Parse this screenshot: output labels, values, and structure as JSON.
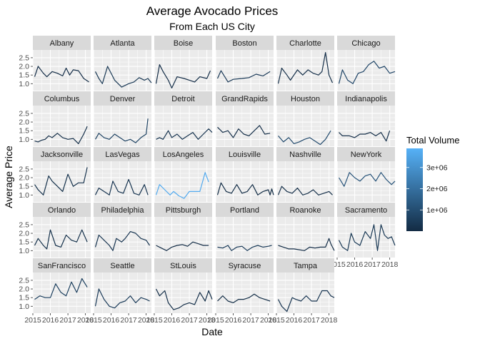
{
  "chart_data": {
    "type": "line",
    "title": "Average Avocado Prices",
    "subtitle": "From Each US City",
    "xlabel": "Date",
    "ylabel": "Average Price",
    "x_ticks": [
      "2015",
      "2016",
      "2017",
      "2018"
    ],
    "y_ticks": [
      "1.0",
      "1.5",
      "2.0",
      "2.5"
    ],
    "xlim": [
      2015.0,
      2018.3
    ],
    "ylim": [
      0.6,
      2.95
    ],
    "grid": true,
    "legend": {
      "title": "Total Volume",
      "placement": "right",
      "ticks": [
        "1e+06",
        "2e+06",
        "3e+06"
      ],
      "tick_values": [
        1000000,
        2000000,
        3000000
      ],
      "range": [
        0,
        3900000
      ],
      "color_low": "#132b43",
      "color_high": "#56b1f7"
    },
    "colors": {
      "panel_bg": "#ebebeb",
      "strip_bg": "#d9d9d9",
      "grid": "#ffffff",
      "line_default": "#1d3a57"
    },
    "series": [
      {
        "name": "Albany",
        "row": 0,
        "col": 0,
        "x": [
          2015.1,
          2015.3,
          2015.6,
          2015.8,
          2016.1,
          2016.4,
          2016.7,
          2016.9,
          2017.1,
          2017.3,
          2017.6,
          2017.9,
          2018.2
        ],
        "y": [
          1.4,
          2.0,
          1.6,
          1.4,
          1.7,
          1.6,
          1.45,
          1.9,
          1.5,
          1.8,
          1.75,
          1.3,
          1.1
        ],
        "volume": 100000
      },
      {
        "name": "Atlanta",
        "row": 0,
        "col": 1,
        "x": [
          2015.1,
          2015.3,
          2015.5,
          2015.8,
          2016.2,
          2016.6,
          2017.0,
          2017.3,
          2017.6,
          2017.9,
          2018.1,
          2018.3
        ],
        "y": [
          1.7,
          1.3,
          1.0,
          2.0,
          1.2,
          0.8,
          1.0,
          1.1,
          1.35,
          1.2,
          1.3,
          1.05
        ],
        "volume": 400000
      },
      {
        "name": "Boise",
        "row": 0,
        "col": 2,
        "x": [
          2015.1,
          2015.3,
          2015.5,
          2015.8,
          2016.0,
          2016.3,
          2016.7,
          2017.0,
          2017.3,
          2017.6,
          2018.0,
          2018.2
        ],
        "y": [
          1.0,
          2.1,
          1.7,
          1.2,
          0.75,
          1.4,
          1.3,
          1.2,
          1.1,
          1.4,
          1.3,
          1.75
        ],
        "volume": 100000
      },
      {
        "name": "Boston",
        "row": 0,
        "col": 3,
        "x": [
          2015.1,
          2015.3,
          2015.7,
          2016.0,
          2016.5,
          2016.9,
          2017.3,
          2017.7,
          2018.1
        ],
        "y": [
          1.3,
          1.75,
          1.1,
          1.25,
          1.3,
          1.35,
          1.55,
          1.45,
          1.7
        ],
        "volume": 450000
      },
      {
        "name": "Charlotte",
        "row": 0,
        "col": 4,
        "x": [
          2015.1,
          2015.3,
          2015.6,
          2015.8,
          2016.2,
          2016.5,
          2016.8,
          2017.1,
          2017.4,
          2017.6,
          2017.8,
          2018.0,
          2018.2
        ],
        "y": [
          1.0,
          1.9,
          1.5,
          1.2,
          1.8,
          1.5,
          1.8,
          1.6,
          1.5,
          1.7,
          2.8,
          1.5,
          1.05
        ],
        "volume": 150000
      },
      {
        "name": "Chicago",
        "row": 0,
        "col": 5,
        "x": [
          2015.1,
          2015.3,
          2015.6,
          2015.9,
          2016.2,
          2016.5,
          2016.8,
          2017.1,
          2017.4,
          2017.7,
          2018.0,
          2018.3
        ],
        "y": [
          1.0,
          1.8,
          1.2,
          1.0,
          1.6,
          1.7,
          2.1,
          2.3,
          1.9,
          2.0,
          1.6,
          1.7
        ],
        "volume": 800000
      },
      {
        "name": "Columbus",
        "row": 1,
        "col": 0,
        "x": [
          2015.1,
          2015.3,
          2015.5,
          2015.7,
          2015.9,
          2016.1,
          2016.4,
          2016.7,
          2017.0,
          2017.3,
          2017.6,
          2017.9,
          2018.1
        ],
        "y": [
          0.9,
          0.85,
          0.95,
          1.0,
          1.2,
          1.1,
          1.35,
          1.1,
          1.0,
          1.05,
          0.75,
          1.3,
          1.75
        ],
        "volume": 150000
      },
      {
        "name": "Denver",
        "row": 1,
        "col": 1,
        "x": [
          2015.1,
          2015.3,
          2015.6,
          2015.9,
          2016.2,
          2016.5,
          2016.8,
          2017.1,
          2017.4,
          2017.7,
          2018.0,
          2018.1
        ],
        "y": [
          1.0,
          1.35,
          1.1,
          1.0,
          1.3,
          1.1,
          0.9,
          1.0,
          0.8,
          1.1,
          1.3,
          2.2
        ],
        "volume": 700000
      },
      {
        "name": "Detroit",
        "row": 1,
        "col": 2,
        "x": [
          2015.1,
          2015.3,
          2015.5,
          2015.8,
          2016.0,
          2016.3,
          2016.6,
          2016.9,
          2017.2,
          2017.5,
          2017.8,
          2018.1,
          2018.3
        ],
        "y": [
          1.0,
          1.1,
          1.0,
          1.5,
          1.1,
          1.3,
          1.0,
          1.2,
          1.4,
          1.0,
          1.3,
          1.6,
          1.4
        ],
        "volume": 300000
      },
      {
        "name": "GrandRapids",
        "row": 1,
        "col": 3,
        "x": [
          2015.1,
          2015.4,
          2015.7,
          2016.0,
          2016.3,
          2016.6,
          2016.9,
          2017.2,
          2017.5,
          2017.8,
          2018.1
        ],
        "y": [
          1.7,
          1.4,
          1.5,
          1.1,
          1.6,
          1.3,
          1.2,
          1.5,
          1.8,
          1.3,
          1.35
        ],
        "volume": 150000
      },
      {
        "name": "Houston",
        "row": 1,
        "col": 4,
        "x": [
          2015.1,
          2015.4,
          2015.7,
          2016.0,
          2016.3,
          2016.6,
          2016.9,
          2017.2,
          2017.5,
          2017.8,
          2018.1
        ],
        "y": [
          1.2,
          0.85,
          1.1,
          0.75,
          0.85,
          1.0,
          1.1,
          0.9,
          0.7,
          1.0,
          1.5
        ],
        "volume": 900000
      },
      {
        "name": "Indianapolis",
        "row": 1,
        "col": 5,
        "x": [
          2015.1,
          2015.3,
          2015.7,
          2016.0,
          2016.3,
          2016.6,
          2016.9,
          2017.2,
          2017.5,
          2017.8,
          2018.0
        ],
        "y": [
          1.4,
          1.2,
          1.2,
          1.1,
          1.3,
          1.3,
          1.4,
          1.2,
          1.4,
          0.9,
          1.5
        ],
        "volume": 150000
      },
      {
        "name": "Jacksonville",
        "row": 2,
        "col": 0,
        "x": [
          2015.1,
          2015.3,
          2015.6,
          2015.9,
          2016.1,
          2016.4,
          2016.7,
          2017.0,
          2017.3,
          2017.6,
          2017.9,
          2018.1
        ],
        "y": [
          1.6,
          1.3,
          1.0,
          2.1,
          1.8,
          1.5,
          1.2,
          2.2,
          1.5,
          1.7,
          1.7,
          2.6
        ],
        "volume": 200000
      },
      {
        "name": "LasVegas",
        "row": 2,
        "col": 1,
        "x": [
          2015.1,
          2015.3,
          2015.6,
          2015.9,
          2016.1,
          2016.4,
          2016.7,
          2017.0,
          2017.3,
          2017.6,
          2017.9,
          2018.1
        ],
        "y": [
          1.0,
          1.4,
          1.2,
          1.0,
          1.8,
          1.2,
          1.1,
          1.9,
          1.1,
          1.0,
          1.6,
          1.0
        ],
        "volume": 300000
      },
      {
        "name": "LosAngeles",
        "row": 2,
        "col": 2,
        "x": [
          2015.1,
          2015.3,
          2015.6,
          2015.9,
          2016.1,
          2016.4,
          2016.7,
          2017.0,
          2017.3,
          2017.6,
          2017.9,
          2018.1
        ],
        "y": [
          1.0,
          1.6,
          1.3,
          1.0,
          1.2,
          0.95,
          0.8,
          1.2,
          1.2,
          1.2,
          2.3,
          1.75
        ],
        "volume": 3700000
      },
      {
        "name": "Louisville",
        "row": 2,
        "col": 3,
        "x": [
          2015.1,
          2015.3,
          2015.6,
          2015.9,
          2016.2,
          2016.5,
          2016.8,
          2017.1,
          2017.4,
          2017.7,
          2018.0,
          2018.1,
          2018.2,
          2018.3
        ],
        "y": [
          1.0,
          1.7,
          1.2,
          1.1,
          1.6,
          1.1,
          1.2,
          1.6,
          1.0,
          1.2,
          1.3,
          1.0,
          1.35,
          1.0
        ],
        "volume": 80000
      },
      {
        "name": "Nashville",
        "row": 2,
        "col": 4,
        "x": [
          2015.1,
          2015.3,
          2015.6,
          2015.9,
          2016.2,
          2016.5,
          2016.8,
          2017.1,
          2017.4,
          2017.7,
          2018.0,
          2018.2
        ],
        "y": [
          1.0,
          1.5,
          1.2,
          1.1,
          1.4,
          1.0,
          1.1,
          1.3,
          1.0,
          1.1,
          1.2,
          1.0
        ],
        "volume": 150000
      },
      {
        "name": "NewYork",
        "row": 2,
        "col": 5,
        "x": [
          2015.1,
          2015.4,
          2015.7,
          2016.0,
          2016.3,
          2016.6,
          2016.9,
          2017.2,
          2017.5,
          2017.8,
          2018.1,
          2018.3
        ],
        "y": [
          2.0,
          1.5,
          2.3,
          2.0,
          1.8,
          2.1,
          2.2,
          1.8,
          2.3,
          1.9,
          1.6,
          1.8
        ],
        "volume": 1200000
      },
      {
        "name": "Orlando",
        "row": 3,
        "col": 0,
        "x": [
          2015.1,
          2015.3,
          2015.6,
          2015.8,
          2016.0,
          2016.3,
          2016.6,
          2016.9,
          2017.2,
          2017.5,
          2017.8,
          2018.1
        ],
        "y": [
          1.3,
          1.7,
          1.3,
          1.1,
          2.2,
          1.3,
          1.2,
          1.9,
          1.6,
          1.5,
          2.2,
          1.5
        ],
        "volume": 200000
      },
      {
        "name": "Philadelphia",
        "row": 3,
        "col": 1,
        "x": [
          2015.1,
          2015.3,
          2015.6,
          2015.9,
          2016.1,
          2016.3,
          2016.6,
          2016.8,
          2017.1,
          2017.4,
          2017.7,
          2018.0,
          2018.2
        ],
        "y": [
          1.2,
          1.9,
          1.6,
          1.3,
          1.0,
          1.7,
          1.5,
          1.7,
          2.1,
          2.0,
          1.7,
          1.6,
          1.3
        ],
        "volume": 300000
      },
      {
        "name": "Pittsburgh",
        "row": 3,
        "col": 2,
        "x": [
          2015.1,
          2015.4,
          2015.7,
          2016.0,
          2016.3,
          2016.6,
          2016.9,
          2017.2,
          2017.5,
          2017.8,
          2018.1
        ],
        "y": [
          1.3,
          1.15,
          1.0,
          1.2,
          1.3,
          1.35,
          1.25,
          1.5,
          1.4,
          1.3,
          1.3
        ],
        "volume": 100000
      },
      {
        "name": "Portland",
        "row": 3,
        "col": 3,
        "x": [
          2015.1,
          2015.4,
          2015.7,
          2015.9,
          2016.2,
          2016.5,
          2016.8,
          2017.1,
          2017.4,
          2017.7,
          2018.0,
          2018.2
        ],
        "y": [
          1.2,
          1.15,
          1.3,
          1.0,
          1.2,
          1.25,
          1.0,
          1.2,
          1.3,
          1.2,
          1.25,
          1.3
        ],
        "volume": 500000
      },
      {
        "name": "Roanoke",
        "row": 3,
        "col": 4,
        "x": [
          2015.1,
          2015.4,
          2015.7,
          2016.0,
          2016.3,
          2016.6,
          2016.9,
          2017.2,
          2017.5,
          2017.8,
          2018.0,
          2018.1,
          2018.3
        ],
        "y": [
          1.3,
          1.2,
          1.1,
          1.1,
          1.05,
          1.0,
          1.2,
          1.15,
          1.2,
          1.2,
          1.7,
          1.4,
          1.0
        ],
        "volume": 100000
      },
      {
        "name": "Sacramento",
        "row": 3,
        "col": 5,
        "x": [
          2015.1,
          2015.3,
          2015.6,
          2015.8,
          2016.0,
          2016.3,
          2016.6,
          2016.9,
          2017.1,
          2017.3,
          2017.5,
          2017.7,
          2017.9,
          2018.1,
          2018.3
        ],
        "y": [
          1.6,
          1.2,
          1.0,
          2.0,
          1.5,
          1.3,
          2.1,
          1.7,
          2.5,
          1.0,
          2.5,
          1.9,
          1.7,
          1.8,
          1.3
        ],
        "volume": 400000
      },
      {
        "name": "SanFrancisco",
        "row": 4,
        "col": 0,
        "x": [
          2015.1,
          2015.4,
          2015.7,
          2016.0,
          2016.3,
          2016.6,
          2016.9,
          2017.2,
          2017.5,
          2017.8,
          2018.1
        ],
        "y": [
          1.4,
          1.6,
          1.5,
          1.5,
          2.3,
          1.8,
          1.6,
          2.4,
          1.8,
          2.6,
          2.1
        ],
        "volume": 600000
      },
      {
        "name": "Seattle",
        "row": 4,
        "col": 1,
        "x": [
          2015.1,
          2015.3,
          2015.6,
          2015.9,
          2016.2,
          2016.5,
          2016.8,
          2017.1,
          2017.4,
          2017.7,
          2018.0,
          2018.2
        ],
        "y": [
          1.0,
          2.0,
          1.4,
          1.0,
          0.9,
          1.2,
          1.3,
          1.6,
          1.2,
          1.5,
          1.4,
          1.3
        ],
        "volume": 500000
      },
      {
        "name": "StLouis",
        "row": 4,
        "col": 2,
        "x": [
          2015.1,
          2015.3,
          2015.6,
          2015.8,
          2016.1,
          2016.4,
          2016.7,
          2017.0,
          2017.3,
          2017.6,
          2017.9,
          2018.1,
          2018.3
        ],
        "y": [
          2.0,
          1.6,
          1.9,
          1.2,
          0.8,
          0.9,
          1.1,
          1.2,
          1.1,
          1.8,
          1.3,
          1.9,
          1.4
        ],
        "volume": 150000
      },
      {
        "name": "Syracuse",
        "row": 4,
        "col": 3,
        "x": [
          2015.1,
          2015.4,
          2015.7,
          2016.0,
          2016.3,
          2016.6,
          2016.9,
          2017.2,
          2017.5,
          2017.8,
          2018.1
        ],
        "y": [
          1.3,
          1.6,
          1.3,
          1.2,
          1.4,
          1.4,
          1.5,
          1.7,
          1.5,
          1.4,
          1.3
        ],
        "volume": 80000
      },
      {
        "name": "Tampa",
        "row": 4,
        "col": 4,
        "x": [
          2015.1,
          2015.3,
          2015.6,
          2015.9,
          2016.1,
          2016.4,
          2016.7,
          2017.0,
          2017.3,
          2017.6,
          2017.9,
          2018.1,
          2018.3
        ],
        "y": [
          1.4,
          1.0,
          0.7,
          1.5,
          1.4,
          1.3,
          1.6,
          1.3,
          1.3,
          1.9,
          1.9,
          1.6,
          1.5
        ],
        "volume": 300000
      }
    ]
  }
}
